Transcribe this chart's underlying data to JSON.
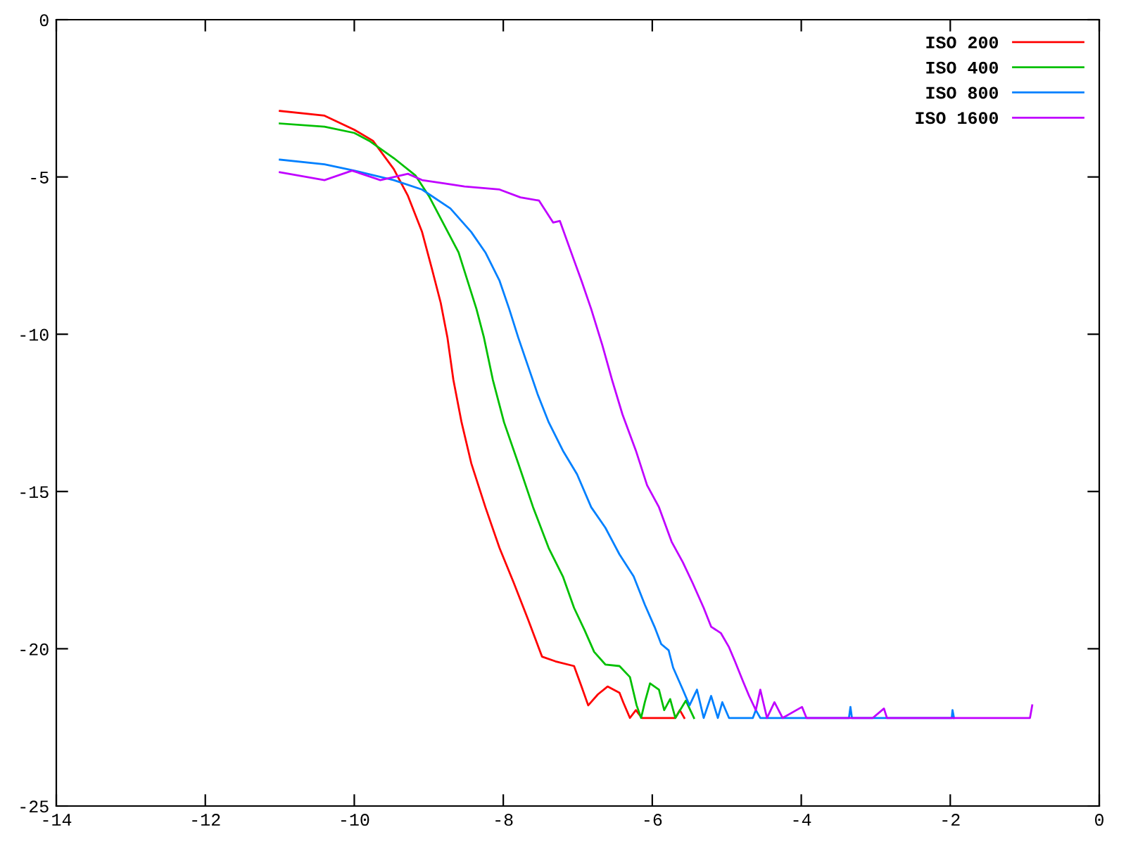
{
  "chart_data": {
    "type": "line",
    "xlim": [
      -14,
      0
    ],
    "ylim": [
      -25,
      0
    ],
    "xticks": [
      -14,
      -12,
      -10,
      -8,
      -6,
      -4,
      -2,
      0
    ],
    "yticks": [
      -25,
      -20,
      -15,
      -10,
      -5,
      0
    ],
    "grid": false,
    "legend": "top right",
    "marker": "none",
    "line_style": "solid",
    "series": [
      {
        "name": "ISO 200",
        "color": "#ff0000",
        "x": [
          -11,
          -10.4,
          -10.0,
          -9.75,
          -9.47,
          -9.28,
          -9.09,
          -8.96,
          -8.84,
          -8.75,
          -8.67,
          -8.56,
          -8.43,
          -8.24,
          -8.05,
          -7.86,
          -7.67,
          -7.48,
          -7.3,
          -7.05,
          -6.95,
          -6.86,
          -6.73,
          -6.6,
          -6.44,
          -6.39,
          -6.3,
          -6.22,
          -6.14,
          -5.69,
          -5.63,
          -5.57
        ],
        "values": [
          -2.9,
          -3.05,
          -3.5,
          -3.85,
          -4.75,
          -5.6,
          -6.75,
          -7.9,
          -9.0,
          -10.1,
          -11.45,
          -12.8,
          -14.1,
          -15.5,
          -16.8,
          -17.9,
          -19.05,
          -20.25,
          -20.4,
          -20.55,
          -21.2,
          -21.8,
          -21.45,
          -21.2,
          -21.4,
          -21.7,
          -22.2,
          -21.95,
          -22.2,
          -22.2,
          -21.95,
          -22.2
        ]
      },
      {
        "name": "ISO 400",
        "color": "#00c000",
        "x": [
          -11,
          -10.4,
          -10.0,
          -9.8,
          -9.47,
          -9.18,
          -9.0,
          -8.8,
          -8.6,
          -8.48,
          -8.36,
          -8.26,
          -8.14,
          -7.99,
          -7.8,
          -7.6,
          -7.39,
          -7.2,
          -7.05,
          -6.91,
          -6.78,
          -6.63,
          -6.44,
          -6.3,
          -6.21,
          -6.15,
          -6.1,
          -6.03,
          -5.91,
          -5.84,
          -5.76,
          -5.69,
          -5.55,
          -5.44
        ],
        "values": [
          -3.3,
          -3.4,
          -3.6,
          -3.85,
          -4.4,
          -4.95,
          -5.6,
          -6.5,
          -7.4,
          -8.3,
          -9.2,
          -10.1,
          -11.45,
          -12.8,
          -14.1,
          -15.5,
          -16.8,
          -17.7,
          -18.7,
          -19.4,
          -20.1,
          -20.5,
          -20.55,
          -20.9,
          -21.8,
          -22.2,
          -21.7,
          -21.1,
          -21.3,
          -21.95,
          -21.6,
          -22.2,
          -21.65,
          -22.2
        ]
      },
      {
        "name": "ISO 800",
        "color": "#0080ff",
        "x": [
          -11,
          -10.4,
          -10.0,
          -9.47,
          -9.09,
          -8.71,
          -8.43,
          -8.24,
          -8.05,
          -7.92,
          -7.8,
          -7.67,
          -7.54,
          -7.39,
          -7.2,
          -7.01,
          -6.82,
          -6.63,
          -6.44,
          -6.25,
          -6.1,
          -5.97,
          -5.88,
          -5.78,
          -5.72,
          -5.59,
          -5.5,
          -5.4,
          -5.31,
          -5.21,
          -5.12,
          -5.06,
          -4.97,
          -4.65,
          -4.61,
          -4.55,
          -3.36,
          -3.34,
          -3.32,
          -1.98,
          -1.97,
          -1.95
        ],
        "values": [
          -4.45,
          -4.6,
          -4.8,
          -5.1,
          -5.4,
          -6.0,
          -6.75,
          -7.4,
          -8.3,
          -9.2,
          -10.1,
          -11.0,
          -11.9,
          -12.8,
          -13.7,
          -14.45,
          -15.5,
          -16.15,
          -17.0,
          -17.7,
          -18.6,
          -19.3,
          -19.85,
          -20.05,
          -20.6,
          -21.3,
          -21.8,
          -21.3,
          -22.2,
          -21.5,
          -22.2,
          -21.7,
          -22.2,
          -22.2,
          -21.95,
          -22.2,
          -22.2,
          -21.85,
          -22.2,
          -22.2,
          -21.95,
          -22.2
        ]
      },
      {
        "name": "ISO 1600",
        "color": "#c000ff",
        "x": [
          -11,
          -10.4,
          -10.03,
          -9.65,
          -9.28,
          -9.09,
          -8.8,
          -8.52,
          -8.05,
          -7.77,
          -7.52,
          -7.33,
          -7.24,
          -7.05,
          -6.95,
          -6.82,
          -6.67,
          -6.54,
          -6.4,
          -6.22,
          -6.07,
          -5.91,
          -5.74,
          -5.59,
          -5.46,
          -5.31,
          -5.21,
          -5.08,
          -4.97,
          -4.89,
          -4.78,
          -4.7,
          -4.61,
          -4.55,
          -4.46,
          -4.36,
          -4.25,
          -3.99,
          -3.93,
          -3.04,
          -2.89,
          -2.85,
          -0.93,
          -0.9
        ],
        "values": [
          -4.85,
          -5.1,
          -4.8,
          -5.1,
          -4.9,
          -5.1,
          -5.2,
          -5.3,
          -5.4,
          -5.65,
          -5.75,
          -6.45,
          -6.4,
          -7.65,
          -8.3,
          -9.2,
          -10.35,
          -11.45,
          -12.55,
          -13.7,
          -14.8,
          -15.5,
          -16.6,
          -17.25,
          -17.9,
          -18.7,
          -19.3,
          -19.5,
          -19.95,
          -20.4,
          -21.05,
          -21.5,
          -21.95,
          -21.3,
          -22.2,
          -21.7,
          -22.2,
          -21.85,
          -22.2,
          -22.2,
          -21.9,
          -22.2,
          -22.2,
          -21.8
        ]
      }
    ]
  }
}
